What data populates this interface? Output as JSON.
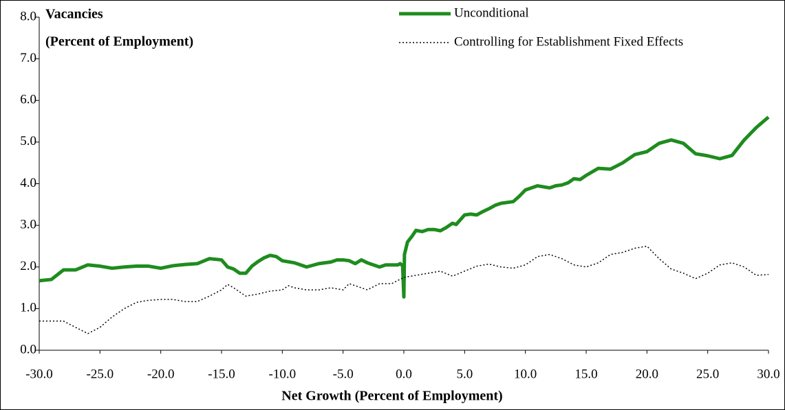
{
  "chart_data": {
    "type": "line",
    "ylabel": [
      "Vacancies",
      "(Percent of Employment)"
    ],
    "xlabel": "Net Growth (Percent of Employment)",
    "xlim": [
      -30,
      30
    ],
    "ylim": [
      0,
      8
    ],
    "xticks": [
      {
        "value": -30,
        "label": "-30.0"
      },
      {
        "value": -25,
        "label": "-25.0"
      },
      {
        "value": -20,
        "label": "-20.0"
      },
      {
        "value": -15,
        "label": "-15.0"
      },
      {
        "value": -10,
        "label": "-10.0"
      },
      {
        "value": -5,
        "label": "-5.0"
      },
      {
        "value": 0,
        "label": "0.0"
      },
      {
        "value": 5,
        "label": "5.0"
      },
      {
        "value": 10,
        "label": "10.0"
      },
      {
        "value": 15,
        "label": "15.0"
      },
      {
        "value": 20,
        "label": "20.0"
      },
      {
        "value": 25,
        "label": "25.0"
      },
      {
        "value": 30,
        "label": "30.0"
      }
    ],
    "yticks": [
      {
        "value": 0,
        "label": "0.0"
      },
      {
        "value": 1,
        "label": "1.0"
      },
      {
        "value": 2,
        "label": "2.0"
      },
      {
        "value": 3,
        "label": "3.0"
      },
      {
        "value": 4,
        "label": "4.0"
      },
      {
        "value": 5,
        "label": "5.0"
      },
      {
        "value": 6,
        "label": "6.0"
      },
      {
        "value": 7,
        "label": "7.0"
      },
      {
        "value": 8,
        "label": "8.0"
      }
    ],
    "grid": false,
    "legend": "top-right",
    "series": [
      {
        "name": "Unconditional",
        "color": "#1e8c1e",
        "style": "solid",
        "x": [
          -30,
          -29,
          -28,
          -27,
          -26,
          -25,
          -24,
          -23,
          -22,
          -21,
          -20,
          -19,
          -18,
          -17,
          -16,
          -15,
          -14.5,
          -14,
          -13.5,
          -13,
          -12.5,
          -12,
          -11.5,
          -11,
          -10.5,
          -10,
          -9,
          -8,
          -7,
          -6,
          -5.5,
          -5,
          -4.5,
          -4,
          -3.5,
          -3,
          -2.5,
          -2,
          -1.5,
          -1,
          -0.5,
          -0.3,
          -0.1,
          0,
          0.05,
          0.3,
          0.7,
          1,
          1.5,
          2,
          2.5,
          3,
          3.5,
          4,
          4.3,
          5,
          5.5,
          6,
          6.5,
          7,
          7.5,
          8,
          9,
          9.5,
          10,
          11,
          12,
          12.5,
          13,
          13.5,
          14,
          14.5,
          15,
          16,
          17,
          18,
          19,
          20,
          21,
          22,
          23,
          24,
          25,
          26,
          27,
          28,
          29,
          30
        ],
        "values": [
          1.67,
          1.7,
          1.93,
          1.93,
          2.05,
          2.02,
          1.97,
          2.0,
          2.02,
          2.02,
          1.97,
          2.03,
          2.06,
          2.08,
          2.2,
          2.17,
          2.0,
          1.95,
          1.85,
          1.85,
          2.02,
          2.13,
          2.22,
          2.28,
          2.25,
          2.15,
          2.1,
          2.0,
          2.08,
          2.12,
          2.17,
          2.17,
          2.15,
          2.08,
          2.17,
          2.1,
          2.05,
          2.0,
          2.05,
          2.05,
          2.05,
          2.08,
          2.03,
          1.28,
          2.3,
          2.6,
          2.75,
          2.88,
          2.85,
          2.9,
          2.9,
          2.87,
          2.95,
          3.05,
          3.02,
          3.25,
          3.27,
          3.25,
          3.33,
          3.4,
          3.48,
          3.53,
          3.57,
          3.7,
          3.85,
          3.95,
          3.9,
          3.95,
          3.97,
          4.02,
          4.12,
          4.1,
          4.2,
          4.37,
          4.35,
          4.5,
          4.7,
          4.77,
          4.97,
          5.05,
          4.97,
          4.72,
          4.67,
          4.6,
          4.68,
          5.05,
          5.35,
          5.6
        ]
      },
      {
        "name": "Controlling for Establishment Fixed Effects",
        "color": "#000000",
        "style": "dotted",
        "x": [
          -30,
          -28,
          -27,
          -26,
          -25,
          -24,
          -23,
          -22,
          -21,
          -20,
          -19,
          -18,
          -17,
          -16,
          -15,
          -14.5,
          -14,
          -13,
          -12,
          -11,
          -10,
          -9.5,
          -9,
          -8,
          -7,
          -6,
          -5,
          -4.5,
          -4,
          -3,
          -2,
          -1,
          0,
          1,
          2,
          3,
          4,
          5,
          6,
          7,
          8,
          9,
          10,
          11,
          12,
          13,
          14,
          15,
          16,
          17,
          18,
          19,
          20,
          21,
          22,
          23,
          24,
          25,
          26,
          27,
          28,
          29,
          30
        ],
        "values": [
          0.7,
          0.7,
          0.55,
          0.4,
          0.55,
          0.8,
          1.0,
          1.15,
          1.2,
          1.22,
          1.22,
          1.17,
          1.17,
          1.3,
          1.45,
          1.58,
          1.5,
          1.3,
          1.35,
          1.42,
          1.45,
          1.55,
          1.5,
          1.45,
          1.45,
          1.5,
          1.45,
          1.6,
          1.55,
          1.45,
          1.6,
          1.6,
          1.75,
          1.8,
          1.85,
          1.9,
          1.78,
          1.9,
          2.02,
          2.07,
          2.0,
          1.97,
          2.05,
          2.25,
          2.3,
          2.2,
          2.05,
          2.0,
          2.1,
          2.3,
          2.35,
          2.45,
          2.5,
          2.2,
          1.95,
          1.85,
          1.72,
          1.85,
          2.05,
          2.1,
          2.0,
          1.8,
          1.82
        ]
      }
    ]
  }
}
